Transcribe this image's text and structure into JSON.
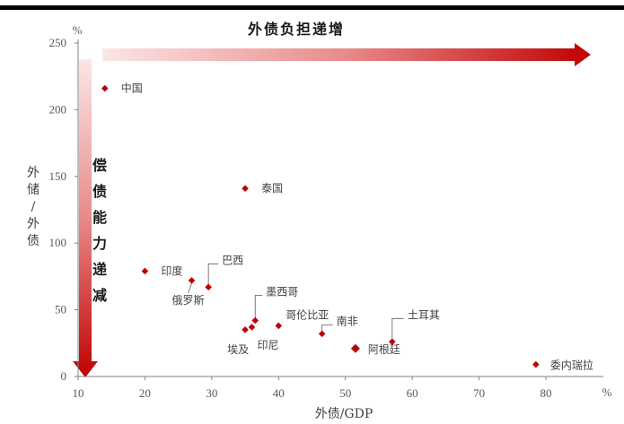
{
  "chart_data": {
    "type": "scatter",
    "title": "",
    "xlabel": "外债/GDP",
    "ylabel": "外储/外债",
    "x_unit": "%",
    "y_unit": "%",
    "xlim": [
      10,
      80
    ],
    "ylim": [
      0,
      250
    ],
    "x_ticks": [
      "10",
      "20",
      "30",
      "40",
      "50",
      "60",
      "70",
      "80"
    ],
    "y_ticks": [
      "0",
      "50",
      "100",
      "150",
      "200",
      "250"
    ],
    "grid": false,
    "marker_color": "#c00000",
    "points": [
      {
        "label": "中国",
        "x": 14,
        "y": 216
      },
      {
        "label": "泰国",
        "x": 35,
        "y": 141
      },
      {
        "label": "印度",
        "x": 20,
        "y": 79
      },
      {
        "label": "俄罗斯",
        "x": 27,
        "y": 72
      },
      {
        "label": "巴西",
        "x": 29.5,
        "y": 67
      },
      {
        "label": "墨西哥",
        "x": 36.5,
        "y": 42
      },
      {
        "label": "埃及",
        "x": 35,
        "y": 35
      },
      {
        "label": "印尼",
        "x": 36,
        "y": 37
      },
      {
        "label": "哥伦比亚",
        "x": 40,
        "y": 38
      },
      {
        "label": "南非",
        "x": 46.5,
        "y": 32
      },
      {
        "label": "阿根廷",
        "x": 51.5,
        "y": 21
      },
      {
        "label": "土耳其",
        "x": 57,
        "y": 26
      },
      {
        "label": "委内瑞拉",
        "x": 78.5,
        "y": 9
      }
    ],
    "annotations": {
      "horizontal_arrow": "外债负担递增",
      "vertical_arrow": "偿债能力递减"
    }
  }
}
